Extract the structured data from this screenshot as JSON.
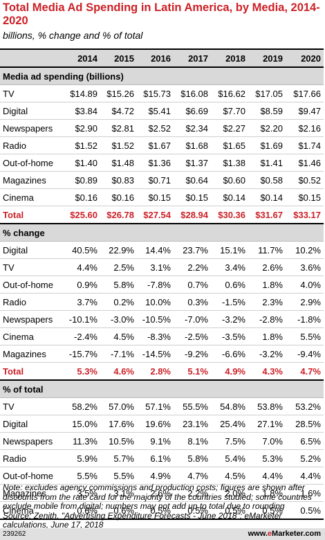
{
  "title": "Total Media Ad Spending in Latin America, by Media, 2014-2020",
  "subtitle": "billions, % change and % of total",
  "years": [
    "2014",
    "2015",
    "2016",
    "2017",
    "2018",
    "2019",
    "2020"
  ],
  "chart_data": {
    "type": "table",
    "columns": [
      "2014",
      "2015",
      "2016",
      "2017",
      "2018",
      "2019",
      "2020"
    ],
    "sections": [
      {
        "heading": "Media ad spending (billions)",
        "rows": [
          {
            "label": "TV",
            "values": [
              "$14.89",
              "$15.26",
              "$15.73",
              "$16.08",
              "$16.62",
              "$17.05",
              "$17.66"
            ]
          },
          {
            "label": "Digital",
            "values": [
              "$3.84",
              "$4.72",
              "$5.41",
              "$6.69",
              "$7.70",
              "$8.59",
              "$9.47"
            ]
          },
          {
            "label": "Newspapers",
            "values": [
              "$2.90",
              "$2.81",
              "$2.52",
              "$2.34",
              "$2.27",
              "$2.20",
              "$2.16"
            ]
          },
          {
            "label": "Radio",
            "values": [
              "$1.52",
              "$1.52",
              "$1.67",
              "$1.68",
              "$1.65",
              "$1.69",
              "$1.74"
            ]
          },
          {
            "label": "Out-of-home",
            "values": [
              "$1.40",
              "$1.48",
              "$1.36",
              "$1.37",
              "$1.38",
              "$1.41",
              "$1.46"
            ]
          },
          {
            "label": "Magazines",
            "values": [
              "$0.89",
              "$0.83",
              "$0.71",
              "$0.64",
              "$0.60",
              "$0.58",
              "$0.52"
            ]
          },
          {
            "label": "Cinema",
            "values": [
              "$0.16",
              "$0.16",
              "$0.15",
              "$0.15",
              "$0.14",
              "$0.14",
              "$0.15"
            ]
          }
        ],
        "total": {
          "label": "Total",
          "values": [
            "$25.60",
            "$26.78",
            "$27.54",
            "$28.94",
            "$30.36",
            "$31.67",
            "$33.17"
          ]
        }
      },
      {
        "heading": "% change",
        "rows": [
          {
            "label": "Digital",
            "values": [
              "40.5%",
              "22.9%",
              "14.4%",
              "23.7%",
              "15.1%",
              "11.7%",
              "10.2%"
            ]
          },
          {
            "label": "TV",
            "values": [
              "4.4%",
              "2.5%",
              "3.1%",
              "2.2%",
              "3.4%",
              "2.6%",
              "3.6%"
            ]
          },
          {
            "label": "Out-of-home",
            "values": [
              "0.9%",
              "5.8%",
              "-7.8%",
              "0.7%",
              "0.6%",
              "1.8%",
              "4.0%"
            ]
          },
          {
            "label": "Radio",
            "values": [
              "3.7%",
              "0.2%",
              "10.0%",
              "0.3%",
              "-1.5%",
              "2.3%",
              "2.9%"
            ]
          },
          {
            "label": "Newspapers",
            "values": [
              "-10.1%",
              "-3.0%",
              "-10.5%",
              "-7.0%",
              "-3.2%",
              "-2.8%",
              "-1.8%"
            ]
          },
          {
            "label": "Cinema",
            "values": [
              "-2.4%",
              "4.5%",
              "-8.3%",
              "-2.5%",
              "-3.5%",
              "1.8%",
              "5.5%"
            ]
          },
          {
            "label": "Magazines",
            "values": [
              "-15.7%",
              "-7.1%",
              "-14.5%",
              "-9.2%",
              "-6.6%",
              "-3.2%",
              "-9.4%"
            ]
          }
        ],
        "total": {
          "label": "Total",
          "values": [
            "5.3%",
            "4.6%",
            "2.8%",
            "5.1%",
            "4.9%",
            "4.3%",
            "4.7%"
          ]
        }
      },
      {
        "heading": "% of total",
        "rows": [
          {
            "label": "TV",
            "values": [
              "58.2%",
              "57.0%",
              "57.1%",
              "55.5%",
              "54.8%",
              "53.8%",
              "53.2%"
            ]
          },
          {
            "label": "Digital",
            "values": [
              "15.0%",
              "17.6%",
              "19.6%",
              "23.1%",
              "25.4%",
              "27.1%",
              "28.5%"
            ]
          },
          {
            "label": "Newspapers",
            "values": [
              "11.3%",
              "10.5%",
              "9.1%",
              "8.1%",
              "7.5%",
              "7.0%",
              "6.5%"
            ]
          },
          {
            "label": "Radio",
            "values": [
              "5.9%",
              "5.7%",
              "6.1%",
              "5.8%",
              "5.4%",
              "5.3%",
              "5.2%"
            ]
          },
          {
            "label": "Out-of-home",
            "values": [
              "5.5%",
              "5.5%",
              "4.9%",
              "4.7%",
              "4.5%",
              "4.4%",
              "4.4%"
            ]
          },
          {
            "label": "Magazines",
            "values": [
              "3.5%",
              "3.1%",
              "2.6%",
              "2.2%",
              "2.0%",
              "1.8%",
              "1.6%"
            ]
          },
          {
            "label": "Cinema",
            "values": [
              "0.6%",
              "0.6%",
              "0.5%",
              "0.5%",
              "0.5%",
              "0.5%",
              "0.5%"
            ]
          }
        ]
      }
    ]
  },
  "note": "Note: excludes agency commissions and production costs; figures are shown after discounts from the rate card for the majority of the countries studied; some countries exclude mobile from digital; numbers may not add up to total due to rounding",
  "source": "Source: Zenith, \"Advertising Expenditure Forecasts - June 2018\"; eMarketer calculations, June 17, 2018",
  "footer": {
    "chart_id": "239262",
    "brand_prefix": "www.",
    "brand_e": "e",
    "brand_name": "Marketer",
    "brand_suffix": ".com"
  },
  "colors": {
    "accent": "#cc2127",
    "header_bg": "#d9d9d9"
  }
}
